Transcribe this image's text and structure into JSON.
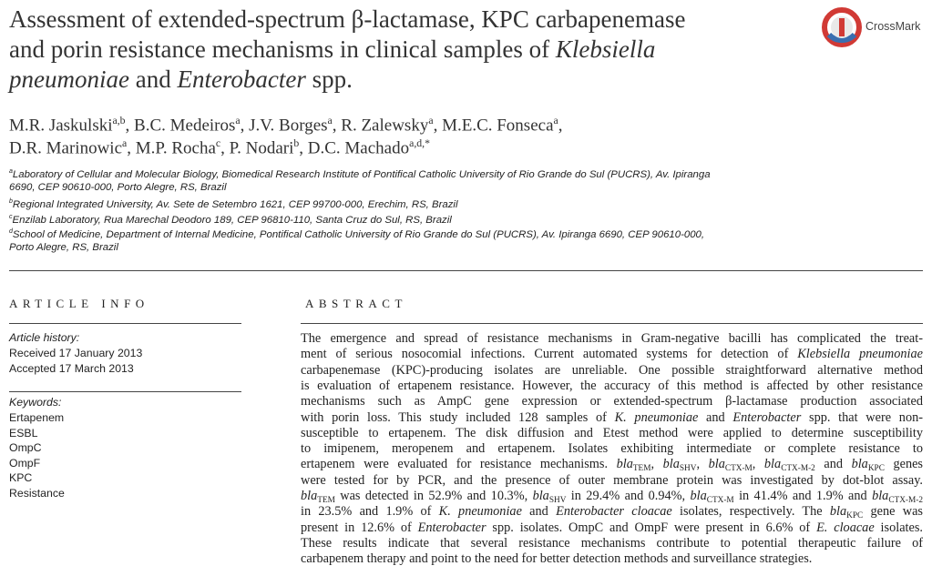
{
  "header": {
    "title_lines": [
      [
        "Assessment of extended-spectrum β-lactamase, KPC carbapenemase"
      ],
      [
        "and porin resistance mechanisms in clinical samples of ",
        {
          "t": "Klebsiella",
          "f": "i"
        }
      ],
      [
        {
          "t": "pneumoniae",
          "f": "i"
        },
        " and ",
        {
          "t": "Enterobacter",
          "f": "i"
        },
        " spp."
      ]
    ],
    "crossmark": "CrossMark"
  },
  "authors": {
    "lines": [
      [
        {
          "name": "M.R. Jaskulski",
          "aff": "a,b",
          "sep": ","
        },
        {
          "name": "B.C. Medeiros",
          "aff": "a",
          "sep": ","
        },
        {
          "name": "J.V. Borges",
          "aff": "a",
          "sep": ","
        },
        {
          "name": "R. Zalewsky",
          "aff": "a",
          "sep": ","
        },
        {
          "name": "M.E.C. Fonseca",
          "aff": "a",
          "sep": ","
        }
      ],
      [
        {
          "name": "D.R. Marinowic",
          "aff": "a",
          "sep": ","
        },
        {
          "name": "M.P. Rocha",
          "aff": "c",
          "sep": ","
        },
        {
          "name": "P. Nodari",
          "aff": "b",
          "sep": ","
        },
        {
          "name": "D.C. Machado",
          "aff": "a,d,*"
        }
      ]
    ]
  },
  "affiliations": [
    {
      "mark": "a",
      "lines": [
        "Laboratory of Cellular and Molecular Biology, Biomedical Research Institute of Pontifical Catholic University of Rio Grande do Sul (PUCRS), Av. Ipiranga",
        "6690, CEP 90610-000, Porto Alegre, RS, Brazil"
      ]
    },
    {
      "mark": "b",
      "lines": [
        "Regional Integrated University, Av. Sete de Setembro 1621, CEP 99700-000, Erechim, RS, Brazil"
      ]
    },
    {
      "mark": "c",
      "lines": [
        "Enzilab Laboratory, Rua Marechal Deodoro 189, CEP 96810-110, Santa Cruz do Sul, RS, Brazil"
      ]
    },
    {
      "mark": "d",
      "lines": [
        "School of Medicine, Department of Internal Medicine, Pontifical Catholic University of Rio Grande do Sul (PUCRS), Av. Ipiranga 6690, CEP 90610-000,",
        "Porto Alegre, RS, Brazil"
      ]
    }
  ],
  "article_info": {
    "heading": "ARTICLE INFO",
    "history": {
      "label": "Article history:",
      "items": [
        "Received 17 January 2013",
        "Accepted 17 March 2013"
      ]
    },
    "keywords": {
      "label": "Keywords:",
      "items": [
        "Ertapenem",
        "ESBL",
        "OmpC",
        "OmpF",
        "KPC",
        "Resistance"
      ]
    }
  },
  "abstract": {
    "heading": "ABSTRACT",
    "lines": [
      [
        "The emergence and spread of resistance mechanisms in Gram-negative bacilli has complicated the treat-"
      ],
      [
        "ment of serious nosocomial infections. Current automated systems for detection of ",
        {
          "t": "Klebsiella pneumoniae",
          "f": "i"
        }
      ],
      [
        "carbapenemase (KPC)-producing isolates are unreliable. One possible straightforward alternative method"
      ],
      [
        "is evaluation of ertapenem resistance. However, the accuracy of this method is affected by other resistance"
      ],
      [
        "mechanisms such as AmpC gene expression or extended-spectrum β-lactamase production associated"
      ],
      [
        "with porin loss. This study included 128 samples of ",
        {
          "t": "K. pneumoniae",
          "f": "i"
        },
        " and ",
        {
          "t": "Enterobacter",
          "f": "i"
        },
        " spp. that were non-"
      ],
      [
        "susceptible to ertapenem. The disk diffusion and Etest method were applied to determine susceptibility"
      ],
      [
        "to imipenem, meropenem and ertapenem. Isolates exhibiting intermediate or complete resistance to"
      ],
      [
        "ertapenem were evaluated for resistance mechanisms. ",
        {
          "t": "bla",
          "f": "i"
        },
        {
          "t": "TEM",
          "f": "sub"
        },
        ", ",
        {
          "t": "bla",
          "f": "i"
        },
        {
          "t": "SHV",
          "f": "sub"
        },
        ", ",
        {
          "t": "bla",
          "f": "i"
        },
        {
          "t": "CTX-M",
          "f": "sub"
        },
        ", ",
        {
          "t": "bla",
          "f": "i"
        },
        {
          "t": "CTX-M-2",
          "f": "sub"
        },
        " and ",
        {
          "t": "bla",
          "f": "i"
        },
        {
          "t": "KPC",
          "f": "sub"
        },
        " genes"
      ],
      [
        "were tested for by PCR, and the presence of outer membrane protein was investigated by dot-blot assay."
      ],
      [
        {
          "t": "bla",
          "f": "i"
        },
        {
          "t": "TEM",
          "f": "sub"
        },
        " was detected in 52.9% and 10.3%, ",
        {
          "t": "bla",
          "f": "i"
        },
        {
          "t": "SHV",
          "f": "sub"
        },
        " in 29.4% and 0.94%, ",
        {
          "t": "bla",
          "f": "i"
        },
        {
          "t": "CTX-M",
          "f": "sub"
        },
        " in 41.4% and 1.9% and ",
        {
          "t": "bla",
          "f": "i"
        },
        {
          "t": "CTX-M-2",
          "f": "sub"
        }
      ],
      [
        "in 23.5% and 1.9% of ",
        {
          "t": "K. pneumoniae",
          "f": "i"
        },
        " and ",
        {
          "t": "Enterobacter cloacae",
          "f": "i"
        },
        " isolates, respectively. The ",
        {
          "t": "bla",
          "f": "i"
        },
        {
          "t": "KPC",
          "f": "sub"
        },
        " gene was"
      ],
      [
        "present in 12.6% of ",
        {
          "t": "Enterobacter",
          "f": "i"
        },
        " spp. isolates. OmpC and OmpF were present in 6.6% of ",
        {
          "t": "E. cloacae",
          "f": "i"
        },
        " isolates."
      ],
      [
        "These results indicate that several resistance mechanisms contribute to potential therapeutic failure of"
      ],
      [
        "carbapenem therapy and point to the need for better detection methods and surveillance strategies."
      ]
    ]
  }
}
